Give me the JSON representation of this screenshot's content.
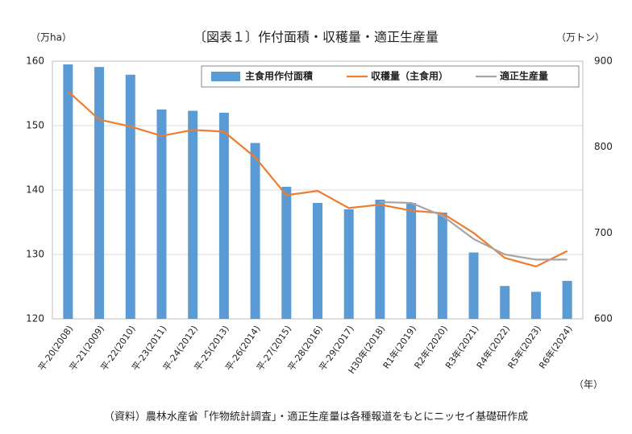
{
  "chart_data": {
    "type": "bar",
    "title": "〔図表１〕作付面積・収穫量・適正生産量",
    "y_label": "（万ha）",
    "y2_label": "（万トン）",
    "x_label": "（年）",
    "source": "（資料）農林水産省「作物統計調査」・適正生産量は各種報道をもとにニッセイ基礎研作成",
    "categories": [
      "平-20(2008)",
      "平-21(2009)",
      "平-22(2010)",
      "平-23(2011)",
      "平-24(2012)",
      "平-25(2013)",
      "平-26(2014)",
      "平-27(2015)",
      "平-28(2016)",
      "平-29(2017)",
      "H30年(2018)",
      "R1年(2019)",
      "R2年(2020)",
      "R3年(2021)",
      "R4年(2022)",
      "R5年(2023)",
      "R6年(2024)"
    ],
    "series": [
      {
        "name": "主食用作付面積",
        "type": "bar",
        "axis": "y",
        "color": "#5b9bd5",
        "values": [
          159.5,
          159.1,
          157.9,
          152.5,
          152.3,
          152.0,
          147.3,
          140.5,
          138.0,
          137.0,
          138.5,
          138.0,
          136.5,
          130.3,
          125.1,
          124.2,
          125.9
        ]
      },
      {
        "name": "収穫量（主食用）",
        "type": "line",
        "axis": "y2",
        "color": "#ed7d31",
        "values": [
          865,
          832,
          824,
          813,
          820,
          818,
          788,
          744,
          749,
          729,
          733,
          726,
          723,
          700,
          671,
          661,
          679
        ]
      },
      {
        "name": "適正生産量",
        "type": "line",
        "axis": "y2",
        "color": "#a5a5a5",
        "values": [
          null,
          null,
          null,
          null,
          null,
          null,
          null,
          null,
          null,
          null,
          736,
          735,
          720,
          693,
          675,
          669,
          669
        ]
      }
    ],
    "ylim": [
      120,
      160
    ],
    "yticks": [
      120,
      130,
      140,
      150,
      160
    ],
    "y2lim": [
      600,
      900
    ],
    "y2ticks": [
      600,
      700,
      800,
      900
    ],
    "grid": true,
    "legend": "top-right"
  }
}
